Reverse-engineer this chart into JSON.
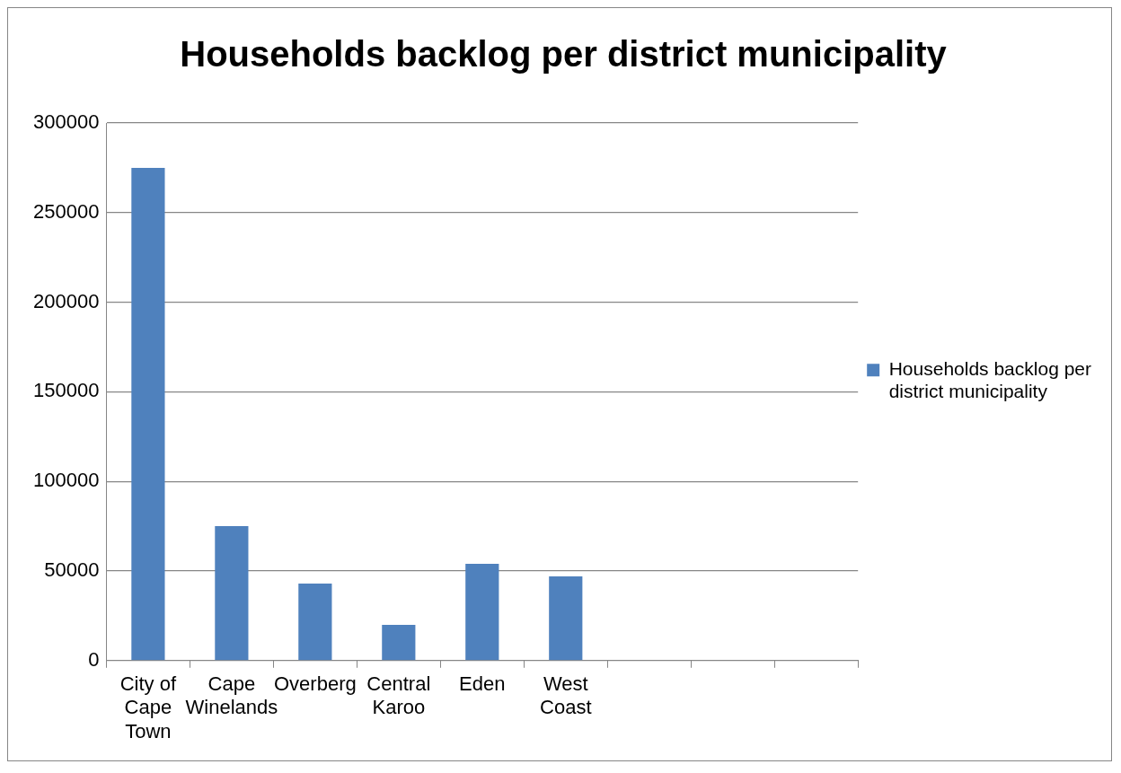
{
  "chart_data": {
    "type": "bar",
    "title": "Households backlog per district municipality",
    "categories": [
      "City of Cape Town",
      "Cape Winelands",
      "Overberg",
      "Central Karoo",
      "Eden",
      "West Coast",
      null,
      null,
      null
    ],
    "series": [
      {
        "name": "Households backlog per district municipality",
        "color": "#4f81bd",
        "values": [
          275000,
          75000,
          43000,
          20000,
          54000,
          47000,
          null,
          null,
          null
        ]
      }
    ],
    "ylim": [
      0,
      300000
    ],
    "yticks": [
      0,
      50000,
      100000,
      150000,
      200000,
      250000,
      300000
    ],
    "grid": "y",
    "legend": "right"
  }
}
